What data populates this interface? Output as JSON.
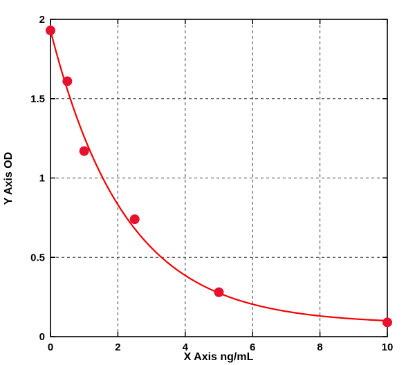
{
  "chart_data": {
    "type": "scatter",
    "title": "",
    "xlabel": "X Axis ng/mL",
    "ylabel": "Y Axis OD",
    "xlim": [
      0,
      10
    ],
    "ylim": [
      0,
      2
    ],
    "xticks": [
      0,
      2,
      4,
      6,
      8,
      10
    ],
    "xtick_labels": [
      "0",
      "2",
      "4",
      "6",
      "8",
      "10"
    ],
    "yticks": [
      0,
      0.5,
      1,
      1.5,
      2
    ],
    "ytick_labels": [
      "0",
      "0.5",
      "1",
      "1.5",
      "2"
    ],
    "grid": true,
    "grid_style": "dashed",
    "legend": null,
    "points": [
      {
        "x": 0,
        "y": 1.93
      },
      {
        "x": 0.5,
        "y": 1.61
      },
      {
        "x": 1,
        "y": 1.17
      },
      {
        "x": 2.5,
        "y": 0.74
      },
      {
        "x": 5,
        "y": 0.28
      },
      {
        "x": 10,
        "y": 0.09
      }
    ],
    "fit_curve": {
      "type": "exponential_decay",
      "formula": "y = a*exp(-b*x) + c",
      "a": 1.85,
      "b": 0.45,
      "c": 0.08
    },
    "colors": {
      "marker": "#e8112d",
      "line": "#f40000",
      "grid": "#333333",
      "axis": "#000000",
      "background": "#ffffff"
    }
  }
}
